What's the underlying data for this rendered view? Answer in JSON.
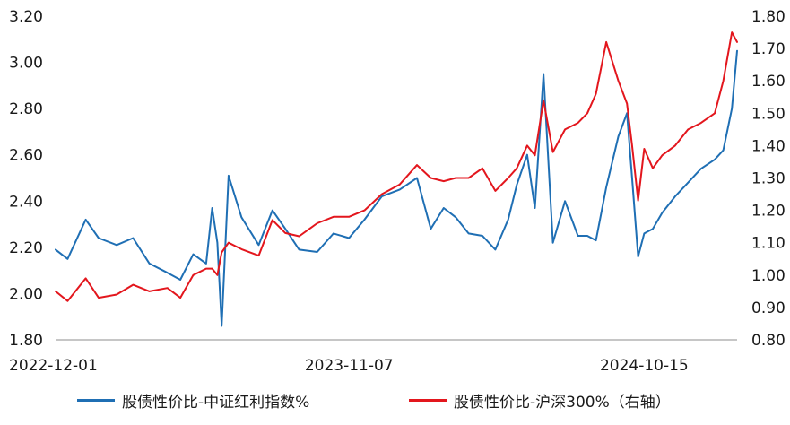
{
  "chart_data": {
    "type": "line",
    "x_labels": [
      "2022-12-01",
      "2023-11-07",
      "2024-10-15"
    ],
    "y_left": {
      "ticks": [
        "1.80",
        "2.00",
        "2.20",
        "2.40",
        "2.60",
        "2.80",
        "3.00",
        "3.20"
      ],
      "ylim": [
        1.8,
        3.2
      ]
    },
    "y_right": {
      "ticks": [
        "0.80",
        "0.90",
        "1.00",
        "1.10",
        "1.20",
        "1.30",
        "1.40",
        "1.50",
        "1.60",
        "1.70",
        "1.80"
      ],
      "ylim": [
        0.8,
        1.8
      ]
    },
    "grid": false,
    "legend_position": "bottom",
    "x_range": [
      "2022-12-01",
      "2025-01-31"
    ],
    "series": [
      {
        "name": "股债性价比-中证红利指数%",
        "axis": "left",
        "color": "#1f6fb4",
        "x": [
          "2022-12-01",
          "2022-12-15",
          "2023-01-05",
          "2023-01-20",
          "2023-02-10",
          "2023-03-01",
          "2023-03-20",
          "2023-04-10",
          "2023-04-25",
          "2023-05-10",
          "2023-05-25",
          "2023-06-01",
          "2023-06-07",
          "2023-06-12",
          "2023-06-20",
          "2023-07-05",
          "2023-07-25",
          "2023-08-10",
          "2023-08-25",
          "2023-09-10",
          "2023-10-01",
          "2023-10-20",
          "2023-11-07",
          "2023-11-25",
          "2023-12-15",
          "2024-01-05",
          "2024-01-25",
          "2024-02-10",
          "2024-02-25",
          "2024-03-10",
          "2024-03-25",
          "2024-04-10",
          "2024-04-25",
          "2024-05-10",
          "2024-05-20",
          "2024-06-01",
          "2024-06-10",
          "2024-06-20",
          "2024-07-01",
          "2024-07-15",
          "2024-07-30",
          "2024-08-10",
          "2024-08-20",
          "2024-09-01",
          "2024-09-15",
          "2024-09-25",
          "2024-10-01",
          "2024-10-08",
          "2024-10-15",
          "2024-10-25",
          "2024-11-05",
          "2024-11-20",
          "2024-12-05",
          "2024-12-20",
          "2025-01-05",
          "2025-01-15",
          "2025-01-25",
          "2025-01-31"
        ],
        "values": [
          2.19,
          2.15,
          2.32,
          2.24,
          2.21,
          2.24,
          2.13,
          2.09,
          2.06,
          2.17,
          2.13,
          2.37,
          2.22,
          1.86,
          2.51,
          2.33,
          2.21,
          2.36,
          2.28,
          2.19,
          2.18,
          2.26,
          2.24,
          2.32,
          2.42,
          2.45,
          2.5,
          2.28,
          2.37,
          2.33,
          2.26,
          2.25,
          2.19,
          2.32,
          2.47,
          2.6,
          2.37,
          2.95,
          2.22,
          2.4,
          2.25,
          2.25,
          2.23,
          2.46,
          2.68,
          2.78,
          2.5,
          2.16,
          2.26,
          2.28,
          2.35,
          2.42,
          2.48,
          2.54,
          2.58,
          2.62,
          2.8,
          3.05
        ]
      },
      {
        "name": "股债性价比-沪深300%（右轴）",
        "axis": "right",
        "color": "#e3161d",
        "x": [
          "2022-12-01",
          "2022-12-15",
          "2023-01-05",
          "2023-01-20",
          "2023-02-10",
          "2023-03-01",
          "2023-03-20",
          "2023-04-10",
          "2023-04-25",
          "2023-05-10",
          "2023-05-25",
          "2023-06-01",
          "2023-06-07",
          "2023-06-12",
          "2023-06-20",
          "2023-07-05",
          "2023-07-25",
          "2023-08-10",
          "2023-08-25",
          "2023-09-10",
          "2023-10-01",
          "2023-10-20",
          "2023-11-07",
          "2023-11-25",
          "2023-12-15",
          "2024-01-05",
          "2024-01-25",
          "2024-02-10",
          "2024-02-25",
          "2024-03-10",
          "2024-03-25",
          "2024-04-10",
          "2024-04-25",
          "2024-05-10",
          "2024-05-20",
          "2024-06-01",
          "2024-06-10",
          "2024-06-20",
          "2024-07-01",
          "2024-07-15",
          "2024-07-30",
          "2024-08-10",
          "2024-08-20",
          "2024-09-01",
          "2024-09-15",
          "2024-09-25",
          "2024-10-01",
          "2024-10-08",
          "2024-10-15",
          "2024-10-25",
          "2024-11-05",
          "2024-11-20",
          "2024-12-05",
          "2024-12-20",
          "2025-01-05",
          "2025-01-15",
          "2025-01-25",
          "2025-01-31"
        ],
        "values": [
          0.95,
          0.92,
          0.99,
          0.93,
          0.94,
          0.97,
          0.95,
          0.96,
          0.93,
          1.0,
          1.02,
          1.02,
          1.0,
          1.07,
          1.1,
          1.08,
          1.06,
          1.17,
          1.13,
          1.12,
          1.16,
          1.18,
          1.18,
          1.2,
          1.25,
          1.28,
          1.34,
          1.3,
          1.29,
          1.3,
          1.3,
          1.33,
          1.26,
          1.3,
          1.33,
          1.4,
          1.37,
          1.54,
          1.38,
          1.45,
          1.47,
          1.5,
          1.56,
          1.72,
          1.6,
          1.53,
          1.4,
          1.23,
          1.39,
          1.33,
          1.37,
          1.4,
          1.45,
          1.47,
          1.5,
          1.6,
          1.75,
          1.72
        ]
      }
    ]
  }
}
